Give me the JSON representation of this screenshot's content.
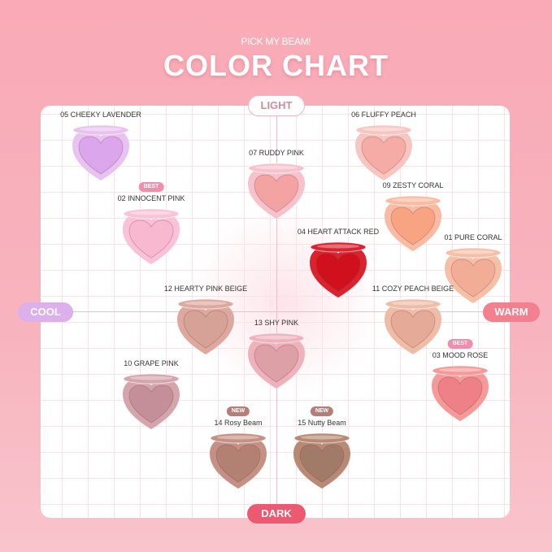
{
  "header": {
    "subtitle": "PICK MY BEAM!",
    "title": "COLOR CHART"
  },
  "axes": {
    "top": "LIGHT",
    "bottom": "DARK",
    "left": "COOL",
    "right": "WARM"
  },
  "badge_colors": {
    "BEST": "#ee8fae",
    "NEW": "#b57f78"
  },
  "shades": [
    {
      "name": "05 CHEEKY LAVENDER",
      "case": "#e8c2f0",
      "pan": "#dca6ec"
    },
    {
      "name": "06 FLUFFY PEACH",
      "case": "#f8c6c0",
      "pan": "#f5aca6"
    },
    {
      "name": "07 RUDDY PINK",
      "case": "#f7c2cc",
      "pan": "#f4a3a3"
    },
    {
      "name": "02 INNOCENT PINK",
      "badge": "BEST",
      "case": "#f9c2d6",
      "pan": "#f8b8d0"
    },
    {
      "name": "09 ZESTY CORAL",
      "case": "#f9bba2",
      "pan": "#f8a483"
    },
    {
      "name": "04 HEART ATTACK RED",
      "case": "#d9232e",
      "pan": "#d0111d"
    },
    {
      "name": "01 PURE CORAL",
      "case": "#f6c0a8",
      "pan": "#f1ad96"
    },
    {
      "name": "12 HEARTY PINK BEIGE",
      "case": "#dda99e",
      "pan": "#d6a298"
    },
    {
      "name": "11 COZY PEACH BEIGE",
      "case": "#efbca8",
      "pan": "#e6aa98"
    },
    {
      "name": "13 SHY PINK",
      "case": "#efb2bc",
      "pan": "#dca0a6"
    },
    {
      "name": "03 MOOD ROSE",
      "badge": "BEST",
      "case": "#f59a98",
      "pan": "#ee8088"
    },
    {
      "name": "10 GRAPE PINK",
      "case": "#d5a5ad",
      "pan": "#c58f99"
    },
    {
      "name": "14 Rosy Beam",
      "badge": "NEW",
      "case": "#c69185",
      "pan": "#b38174"
    },
    {
      "name": "15 Nutty Beam",
      "badge": "NEW",
      "case": "#b88a76",
      "pan": "#a27b68"
    }
  ]
}
